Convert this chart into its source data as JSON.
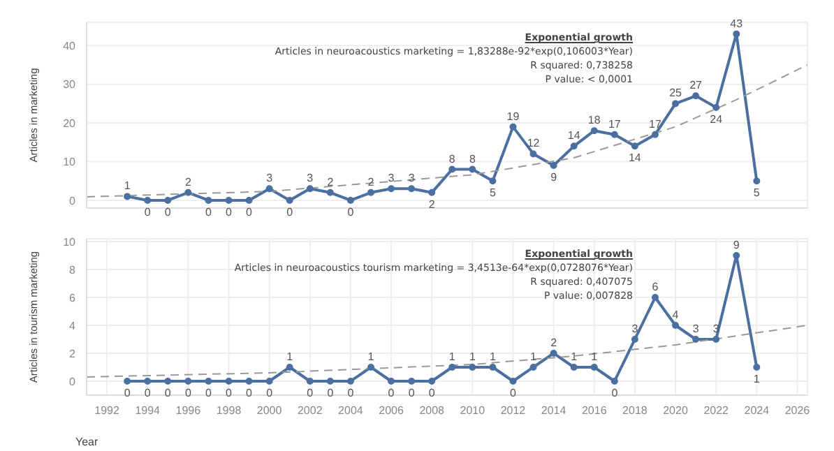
{
  "chart_data": [
    {
      "type": "line",
      "ylabel": "Articles in marketing",
      "x": [
        1993,
        1994,
        1995,
        1996,
        1997,
        1998,
        1999,
        2000,
        2001,
        2002,
        2003,
        2004,
        2005,
        2006,
        2007,
        2008,
        2009,
        2010,
        2011,
        2012,
        2013,
        2014,
        2015,
        2016,
        2017,
        2018,
        2019,
        2020,
        2021,
        2022,
        2023,
        2024
      ],
      "series": [
        {
          "color": "#4a6fa0",
          "marker": "circle",
          "line_style": "solid",
          "values": [
            1,
            0,
            0,
            2,
            0,
            0,
            0,
            3,
            0,
            3,
            2,
            0,
            2,
            3,
            3,
            2,
            8,
            8,
            5,
            19,
            12,
            9,
            14,
            18,
            17,
            14,
            17,
            25,
            27,
            24,
            43,
            5
          ],
          "value_labels": [
            "1",
            "0",
            "0",
            "2",
            "0",
            "0",
            "0",
            "3",
            "0",
            "3",
            "2",
            "0",
            "2",
            "3",
            "3",
            "2",
            "8",
            "8",
            "5",
            "19",
            "12",
            "9",
            "14",
            "18",
            "17",
            "14",
            "17",
            "25",
            "27",
            "24",
            "43",
            "5"
          ]
        },
        {
          "type": "line",
          "color": "#999999",
          "marker": "none",
          "line_style": "dashed",
          "x": [
            1991,
            2000,
            2010,
            2015,
            2020,
            2023,
            2026.5
          ],
          "values": [
            0.9,
            2.3,
            6.6,
            11,
            19,
            26,
            35
          ]
        }
      ],
      "xlim": [
        1991,
        2026.5
      ],
      "xticks": [
        1992,
        1994,
        1996,
        1998,
        2000,
        2002,
        2004,
        2006,
        2008,
        2010,
        2012,
        2014,
        2016,
        2018,
        2020,
        2022,
        2024,
        2026
      ],
      "ylim": [
        -2,
        46
      ],
      "yticks": [
        0,
        10,
        20,
        30,
        40
      ],
      "tick_labels": "y",
      "grid": true,
      "legend": false,
      "annotations": [
        "Exponential growth",
        "Articles in neuroacoustics marketing = 1,83288e-92*exp(0,106003*Year)",
        "R squared: 0,738258",
        "P value: < 0,0001"
      ]
    },
    {
      "type": "line",
      "ylabel": "Articles in tourism marketing",
      "xlabel": "Year",
      "x": [
        1993,
        1994,
        1995,
        1996,
        1997,
        1998,
        1999,
        2000,
        2001,
        2002,
        2003,
        2004,
        2005,
        2006,
        2007,
        2008,
        2009,
        2010,
        2011,
        2012,
        2013,
        2014,
        2015,
        2016,
        2017,
        2018,
        2019,
        2020,
        2021,
        2022,
        2023,
        2024
      ],
      "series": [
        {
          "color": "#4a6fa0",
          "marker": "circle",
          "line_style": "solid",
          "values": [
            0,
            0,
            0,
            0,
            0,
            0,
            0,
            0,
            1,
            0,
            0,
            0,
            1,
            0,
            0,
            0,
            1,
            1,
            1,
            0,
            1,
            2,
            1,
            1,
            0,
            3,
            6,
            4,
            3,
            3,
            9,
            1
          ],
          "value_labels": [
            "0",
            "0",
            "0",
            "0",
            "0",
            "0",
            "0",
            "0",
            "1",
            "0",
            "0",
            "0",
            "1",
            "0",
            "0",
            "0",
            "1",
            "1",
            "1",
            "0",
            "1",
            "2",
            "1",
            "1",
            "0",
            "3",
            "6",
            "4",
            "3",
            "3",
            "9",
            "1"
          ]
        },
        {
          "type": "line",
          "color": "#999999",
          "marker": "none",
          "line_style": "dashed",
          "x": [
            1991,
            2000,
            2005,
            2010,
            2015,
            2020,
            2026.5
          ],
          "values": [
            0.3,
            0.6,
            0.9,
            1.2,
            1.8,
            2.6,
            4.0
          ]
        }
      ],
      "xlim": [
        1991,
        2026.5
      ],
      "xticks": [
        1992,
        1994,
        1996,
        1998,
        2000,
        2002,
        2004,
        2006,
        2008,
        2010,
        2012,
        2014,
        2016,
        2018,
        2020,
        2022,
        2024,
        2026
      ],
      "ylim": [
        -1,
        10.2
      ],
      "yticks": [
        0,
        2,
        4,
        6,
        8,
        10
      ],
      "grid": true,
      "legend": false,
      "annotations": [
        "Exponential growth",
        "Articles in neuroacoustics tourism marketing = 3,4513e-64*exp(0,0728076*Year)",
        "R squared: 0,407075",
        "P value: 0,007828"
      ]
    }
  ]
}
